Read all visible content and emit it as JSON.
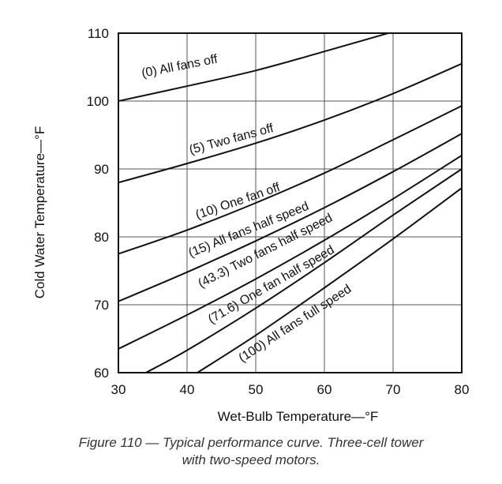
{
  "chart_data": {
    "type": "line",
    "xlabel": "Wet-Bulb Temperature—°F",
    "ylabel": "Cold Water Temperature—°F",
    "xlim": [
      30,
      80
    ],
    "ylim": [
      60,
      110
    ],
    "xticks": [
      30,
      40,
      50,
      60,
      70,
      80
    ],
    "yticks": [
      60,
      70,
      80,
      90,
      100,
      110
    ],
    "grid": true,
    "series": [
      {
        "name": "(0) All fans off",
        "x": [
          30,
          40,
          50,
          60,
          70,
          80
        ],
        "y": [
          100,
          102.2,
          104.5,
          107.3,
          110.2,
          113.2
        ]
      },
      {
        "name": "(5) Two fans off",
        "x": [
          30,
          40,
          50,
          60,
          70,
          80
        ],
        "y": [
          88,
          90.8,
          93.8,
          97.2,
          101.1,
          105.5
        ]
      },
      {
        "name": "(10) One fan off",
        "x": [
          30,
          40,
          50,
          60,
          70,
          80
        ],
        "y": [
          77.5,
          81,
          85,
          89.4,
          94.3,
          99.3
        ]
      },
      {
        "name": "(15) All fans half speed",
        "x": [
          30,
          40,
          50,
          60,
          70,
          80
        ],
        "y": [
          70.5,
          74.8,
          79.4,
          84.3,
          89.6,
          95.2
        ]
      },
      {
        "name": "(43.3) Two fans half speed",
        "x": [
          30,
          40,
          50,
          60,
          70,
          80
        ],
        "y": [
          63.5,
          68.5,
          73.8,
          79.5,
          85.6,
          92
        ]
      },
      {
        "name": "(71.6) One fan half speed",
        "x": [
          34,
          40,
          50,
          60,
          70,
          80
        ],
        "y": [
          60,
          63.3,
          69.5,
          76.2,
          83.2,
          90
        ]
      },
      {
        "name": "(100) All fans full speed",
        "x": [
          41.5,
          50,
          60,
          70,
          80
        ],
        "y": [
          60,
          65.5,
          72.5,
          79.7,
          87.2
        ]
      }
    ],
    "labels": {
      "title": "",
      "caption_line1": "Figure 110 — Typical performance curve. Three-cell tower",
      "caption_line2": "with two-speed motors."
    }
  }
}
